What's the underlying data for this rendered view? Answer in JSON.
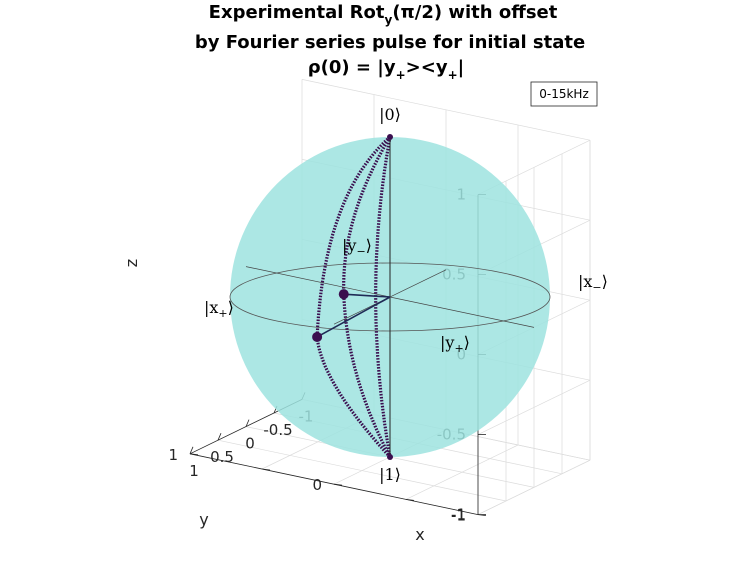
{
  "chart_data": {
    "type": "scatter",
    "subtype": "bloch-sphere-3d",
    "title_lines": [
      [
        "Experimental Rot",
        "y",
        "(π/2) with offset"
      ],
      [
        "by Fourier series pulse for initial state"
      ],
      [
        "ρ(0) = |y",
        "+",
        "><y",
        "+",
        "|"
      ]
    ],
    "xlabel": "x",
    "ylabel": "y",
    "zlabel": "z",
    "xlim": [
      -1,
      1
    ],
    "ylim": [
      -1,
      1
    ],
    "zlim": [
      -1,
      1
    ],
    "x_ticks": [
      "1",
      "0.5",
      "0",
      "-0.5",
      "-1"
    ],
    "y_ticks": [
      "-1",
      "0",
      "1"
    ],
    "z_ticks": [
      "1",
      "0.5",
      "0",
      "-0.5",
      "-1"
    ],
    "grid": true,
    "legend": {
      "position": "top-right",
      "entries": [
        "0-15kHz"
      ]
    },
    "sphere_color": "#9de3df",
    "trajectory_color": "#3b0f4f",
    "basis_labels": {
      "zero": "|0⟩",
      "one": "|1⟩",
      "x_plus": [
        "|x",
        "+",
        "⟩"
      ],
      "x_minus": [
        "|x",
        "−",
        "⟩"
      ],
      "y_plus": [
        "|y",
        "+",
        "⟩"
      ],
      "y_minus": [
        "|y",
        "−",
        "⟩"
      ]
    },
    "series": [
      {
        "name": "0-15kHz",
        "curves": [
          {
            "from": [
              0,
              0,
              1
            ],
            "to": [
              0,
              0,
              -1
            ],
            "bulge": [
              0.05,
              0.08,
              0
            ]
          },
          {
            "from": [
              0,
              0,
              1
            ],
            "to": [
              0.26,
              0.22,
              0.02
            ],
            "bulge": [
              0.1,
              0.05,
              0
            ]
          },
          {
            "from": [
              0,
              0,
              1
            ],
            "to": [
              -0.55,
              0.72,
              -0.48
            ],
            "bulge": [
              -0.25,
              0.2,
              0.05
            ]
          },
          {
            "from": [
              0,
              0,
              -1
            ],
            "to": [
              0.26,
              0.22,
              0.02
            ],
            "bulge": [
              0.05,
              0.05,
              0
            ]
          },
          {
            "from": [
              0,
              0,
              -1
            ],
            "to": [
              -0.55,
              0.72,
              -0.48
            ],
            "bulge": [
              -0.1,
              0.15,
              0
            ]
          }
        ],
        "final_vectors": [
          [
            0.26,
            0.22,
            0.02
          ],
          [
            -0.55,
            0.72,
            -0.48
          ]
        ]
      }
    ]
  }
}
